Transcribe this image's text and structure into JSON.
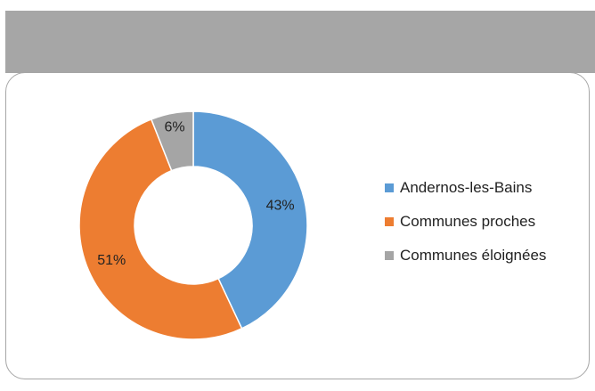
{
  "chart_data": {
    "type": "pie",
    "variant": "donut",
    "title": "",
    "labels": [
      "Andernos-les-Bains",
      "Communes proches",
      "Communes éloignées"
    ],
    "values": [
      43,
      51,
      6
    ],
    "data_labels": [
      "43%",
      "51%",
      "6%"
    ],
    "colors": [
      "#5b9bd5",
      "#ed7d31",
      "#a5a5a5"
    ],
    "legend_position": "right",
    "start_angle_deg": 0,
    "direction": "clockwise"
  }
}
